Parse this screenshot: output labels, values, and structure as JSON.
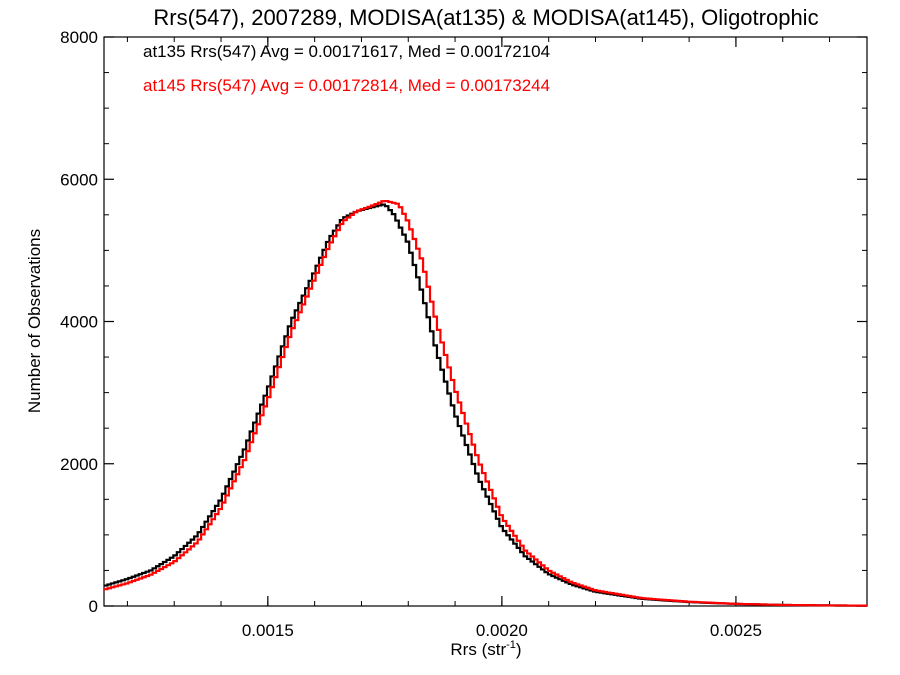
{
  "chart_data": {
    "type": "line",
    "step": true,
    "title": "Rrs(547), 2007289, MODISA(at135) & MODISA(at145), Oligotrophic",
    "xlabel": "Rrs (str",
    "xlabel_sup": "-1",
    "xlabel_close": ")",
    "ylabel": "Number of Observations",
    "xlim": [
      0.00115,
      0.00278
    ],
    "ylim": [
      0,
      8000
    ],
    "xticks": [
      0.0015,
      0.002,
      0.0025
    ],
    "xtick_labels": [
      "0.0015",
      "0.0020",
      "0.0025"
    ],
    "yticks": [
      0,
      2000,
      4000,
      6000,
      8000
    ],
    "ytick_labels": [
      "0",
      "2000",
      "4000",
      "6000",
      "8000"
    ],
    "grid": false,
    "legend_position": "top-left",
    "series": [
      {
        "name": "at135",
        "legend": "at135 Rrs(547) Avg = 0.00171617, Med = 0.00172104",
        "color": "#000000",
        "x": [
          0.00115,
          0.0012,
          0.00125,
          0.0013,
          0.00135,
          0.0014,
          0.00145,
          0.0015,
          0.00155,
          0.0016,
          0.00163,
          0.00166,
          0.00169,
          0.00172,
          0.00175,
          0.00177,
          0.0018,
          0.00183,
          0.00186,
          0.0019,
          0.00195,
          0.002,
          0.00205,
          0.0021,
          0.00215,
          0.0022,
          0.0023,
          0.0024,
          0.0025,
          0.0026,
          0.0027,
          0.00278
        ],
        "y": [
          280,
          380,
          500,
          700,
          1000,
          1500,
          2200,
          3050,
          4000,
          4700,
          5150,
          5450,
          5550,
          5600,
          5650,
          5500,
          5100,
          4400,
          3600,
          2700,
          1800,
          1100,
          700,
          450,
          300,
          200,
          100,
          55,
          30,
          15,
          8,
          5
        ]
      },
      {
        "name": "at145",
        "legend": "at145 Rrs(547) Avg = 0.00172814, Med = 0.00173244",
        "color": "#ff0000",
        "x": [
          0.00115,
          0.0012,
          0.00125,
          0.0013,
          0.00135,
          0.0014,
          0.00145,
          0.0015,
          0.00155,
          0.0016,
          0.00163,
          0.00166,
          0.00169,
          0.00172,
          0.00175,
          0.00178,
          0.0018,
          0.00183,
          0.00186,
          0.0019,
          0.00195,
          0.002,
          0.00205,
          0.0021,
          0.00215,
          0.0022,
          0.0023,
          0.0024,
          0.0025,
          0.0026,
          0.0027,
          0.00278
        ],
        "y": [
          230,
          320,
          440,
          620,
          900,
          1380,
          2050,
          2900,
          3850,
          4600,
          5050,
          5400,
          5550,
          5620,
          5700,
          5650,
          5400,
          4850,
          4000,
          3050,
          2050,
          1250,
          780,
          500,
          330,
          220,
          110,
          60,
          30,
          15,
          8,
          5
        ]
      }
    ]
  }
}
